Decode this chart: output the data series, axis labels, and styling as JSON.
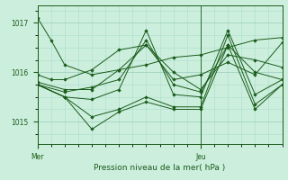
{
  "xlabel": "Pression niveau de la mer( hPa )",
  "bg_color": "#cceedd",
  "grid_color_major": "#99ccbb",
  "grid_color_minor": "#aaddcc",
  "line_color": "#1a5c1a",
  "ylim": [
    1014.55,
    1017.35
  ],
  "yticks": [
    1015,
    1016,
    1017
  ],
  "xlim": [
    0,
    54
  ],
  "mer_x": 0,
  "jeu_x": 36,
  "series": [
    [
      0,
      1017.1,
      3,
      1016.65,
      6,
      1016.15,
      12,
      1015.95,
      18,
      1016.05,
      24,
      1016.15,
      30,
      1016.3,
      36,
      1016.35,
      42,
      1016.5,
      48,
      1016.65,
      54,
      1016.7
    ],
    [
      0,
      1015.95,
      3,
      1015.85,
      6,
      1015.85,
      12,
      1016.05,
      18,
      1016.45,
      24,
      1016.55,
      30,
      1015.85,
      36,
      1015.95,
      42,
      1016.2,
      48,
      1015.95,
      54,
      1016.6
    ],
    [
      0,
      1015.8,
      6,
      1015.65,
      12,
      1015.65,
      18,
      1016.05,
      24,
      1016.55,
      30,
      1016.0,
      36,
      1015.65,
      42,
      1016.35,
      48,
      1016.25,
      54,
      1016.1
    ],
    [
      0,
      1015.75,
      6,
      1015.6,
      12,
      1015.7,
      18,
      1015.85,
      24,
      1016.65,
      30,
      1015.75,
      36,
      1015.6,
      42,
      1016.55,
      48,
      1016.0,
      54,
      1015.85
    ],
    [
      0,
      1015.75,
      6,
      1015.5,
      12,
      1015.45,
      18,
      1015.65,
      24,
      1016.85,
      30,
      1015.55,
      36,
      1015.5,
      42,
      1016.85,
      48,
      1015.55,
      54,
      1015.85
    ],
    [
      0,
      1015.75,
      6,
      1015.5,
      12,
      1015.1,
      18,
      1015.25,
      24,
      1015.5,
      30,
      1015.3,
      36,
      1015.3,
      42,
      1016.75,
      48,
      1015.35,
      54,
      1015.75
    ],
    [
      0,
      1015.75,
      6,
      1015.5,
      12,
      1014.85,
      18,
      1015.2,
      24,
      1015.4,
      30,
      1015.25,
      36,
      1015.25,
      42,
      1016.55,
      48,
      1015.25,
      54,
      1015.75
    ]
  ]
}
